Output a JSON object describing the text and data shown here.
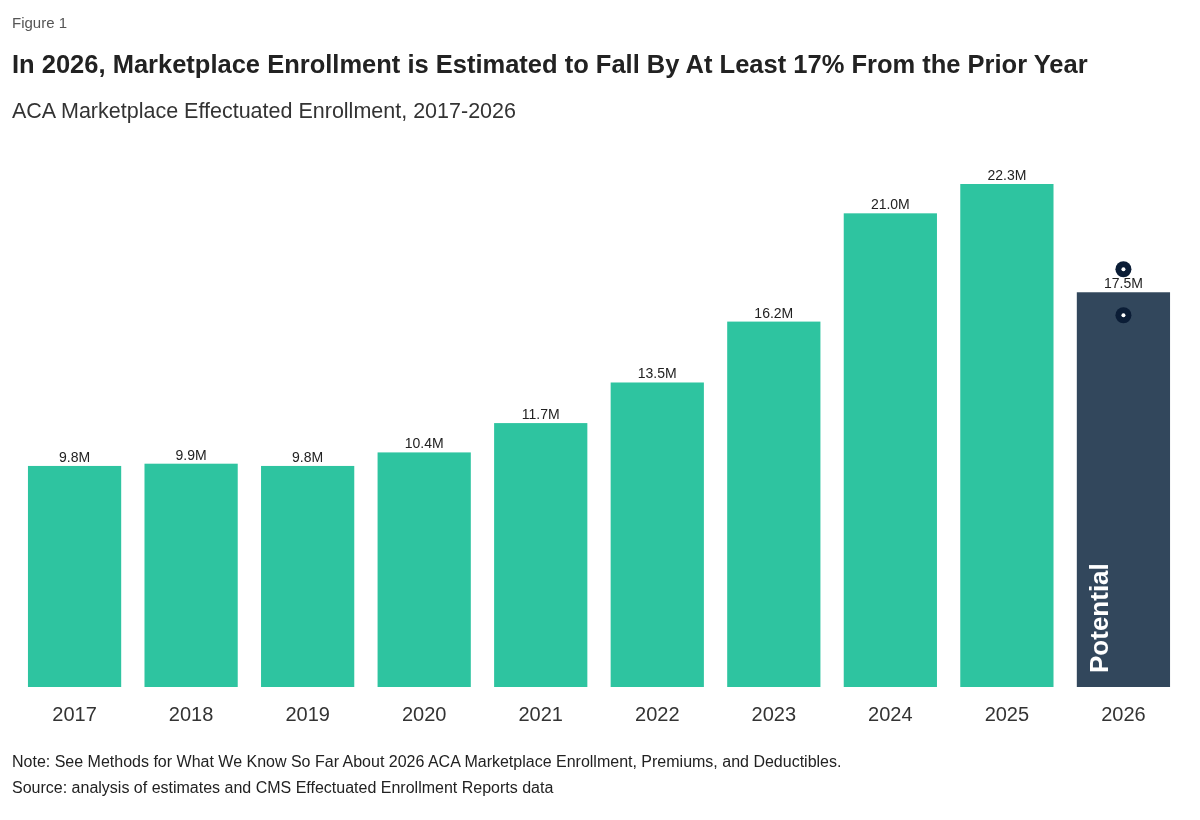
{
  "chart_data": {
    "type": "bar",
    "title": "In 2026, Marketplace Enrollment is Estimated to Fall By At Least 17% From the Prior Year",
    "subtitle": "ACA Marketplace Effectuated Enrollment, 2017-2026",
    "categories": [
      "2017",
      "2018",
      "2019",
      "2020",
      "2021",
      "2022",
      "2023",
      "2024",
      "2025",
      "2026"
    ],
    "values": [
      9.8,
      9.9,
      9.8,
      10.4,
      11.7,
      13.5,
      16.2,
      21.0,
      22.3,
      17.5
    ],
    "colors": [
      "#2ec4a0",
      "#2ec4a0",
      "#2ec4a0",
      "#2ec4a0",
      "#2ec4a0",
      "#2ec4a0",
      "#2ec4a0",
      "#2ec4a0",
      "#2ec4a0",
      "#32475c"
    ],
    "value_labels": [
      "9.8M",
      "9.9M",
      "9.8M",
      "10.4M",
      "11.7M",
      "13.5M",
      "16.2M",
      "21.0M",
      "22.3M",
      "17.5M"
    ],
    "tick_labels": "x",
    "annotations": [
      "Figure 1",
      "Potential",
      "Note: See Methods for What We Know So Far About 2026 ACA Marketplace Enrollment, Premiums, and Deductibles.",
      "Source: analysis of estimates and CMS Effectuated Enrollment Reports data"
    ]
  }
}
